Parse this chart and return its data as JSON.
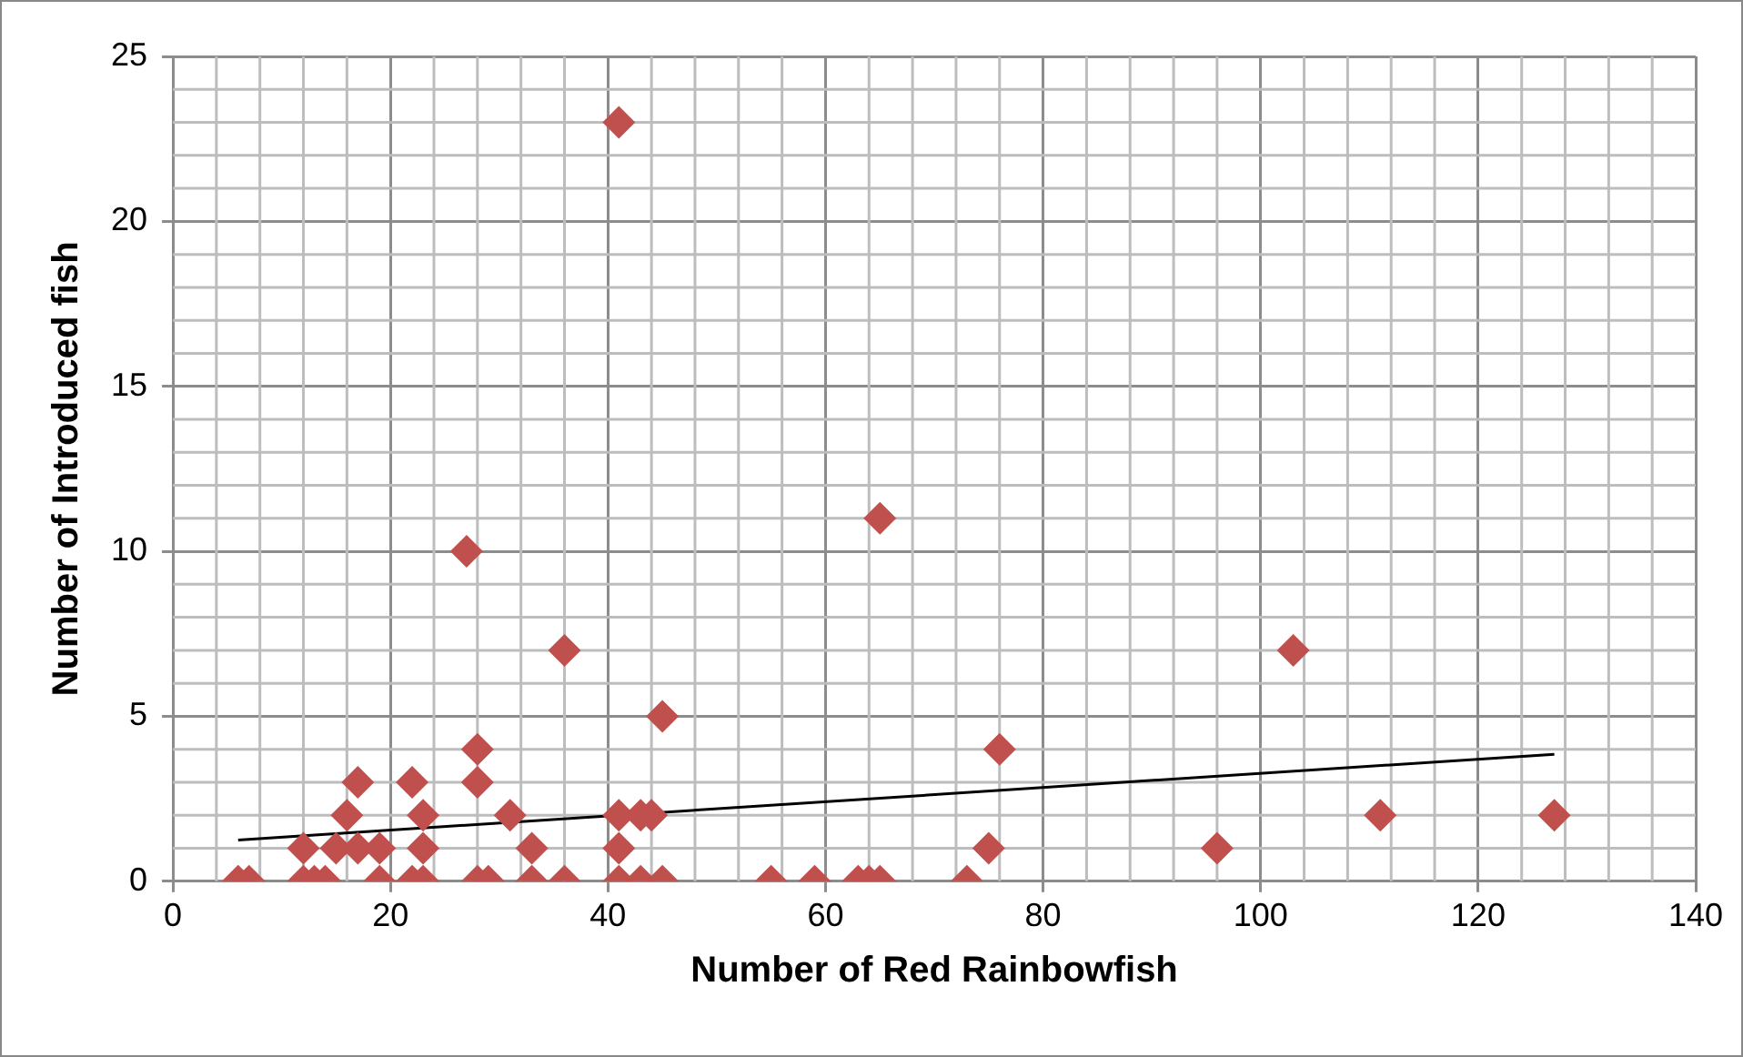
{
  "chart_data": {
    "type": "scatter",
    "xlabel": "Number of Red Rainbowfish",
    "ylabel": "Number of Introduced fish",
    "marker": "diamond",
    "grid": true,
    "legend": false,
    "xlim": [
      0,
      140
    ],
    "xticks": [
      0,
      20,
      40,
      60,
      80,
      100,
      120,
      140
    ],
    "ylim": [
      0,
      25
    ],
    "yticks": [
      0,
      5,
      10,
      15,
      20,
      25
    ],
    "series": [
      {
        "color": "#c0504d",
        "x": [
          6,
          7,
          12,
          13,
          14,
          19,
          22,
          23,
          28,
          29,
          33,
          36,
          41,
          43,
          45,
          55,
          59,
          63,
          64,
          65,
          73,
          12,
          15,
          17,
          19,
          23,
          33,
          41,
          75,
          96,
          16,
          23,
          31,
          41,
          43,
          44,
          111,
          127,
          17,
          22,
          28,
          28,
          45,
          76,
          103,
          36,
          27,
          65,
          41
        ],
        "values": [
          0,
          0,
          0,
          0,
          0,
          0,
          0,
          0,
          0,
          0,
          0,
          0,
          0,
          0,
          0,
          0,
          0,
          0,
          0,
          0,
          0,
          1,
          1,
          1,
          1,
          1,
          1,
          1,
          1,
          1,
          2,
          2,
          2,
          2,
          2,
          2,
          2,
          2,
          3,
          3,
          3,
          4,
          5,
          4,
          7,
          7,
          10,
          11,
          23
        ]
      },
      {
        "type": "line",
        "color": "#000000",
        "marker": "none",
        "x": [
          6,
          127
        ],
        "values": [
          1.25,
          3.85
        ]
      }
    ]
  }
}
